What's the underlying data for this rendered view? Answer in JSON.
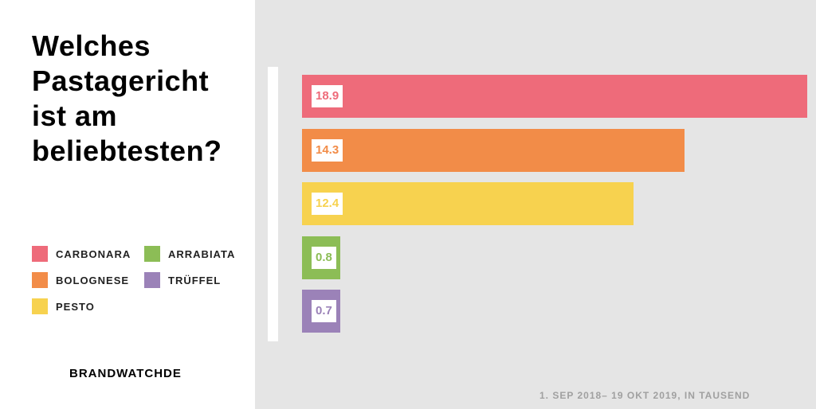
{
  "title": "Welches Pastagericht ist am beliebtesten?",
  "brand": "BRANDWATCHDE",
  "footnote": "1. SEP 2018– 19 OKT 2019, IN TAUSEND",
  "chart_data": {
    "type": "bar",
    "orientation": "horizontal",
    "title": "Welches Pastagericht ist am beliebtesten?",
    "categories": [
      "CARBONARA",
      "BOLOGNESE",
      "PESTO",
      "ARRABIATA",
      "TRÜFFEL"
    ],
    "values": [
      18.9,
      14.3,
      12.4,
      0.8,
      0.7
    ],
    "value_labels": [
      "18.9",
      "14.3",
      "12.4",
      "0.8",
      "0.7"
    ],
    "colors": [
      "#ee6b7a",
      "#f28c48",
      "#f7d24f",
      "#8cbd56",
      "#9b82b8"
    ],
    "unit_note": "1. SEP 2018– 19 OKT 2019, IN TAUSEND",
    "legend_placement": "left",
    "grid": false
  }
}
